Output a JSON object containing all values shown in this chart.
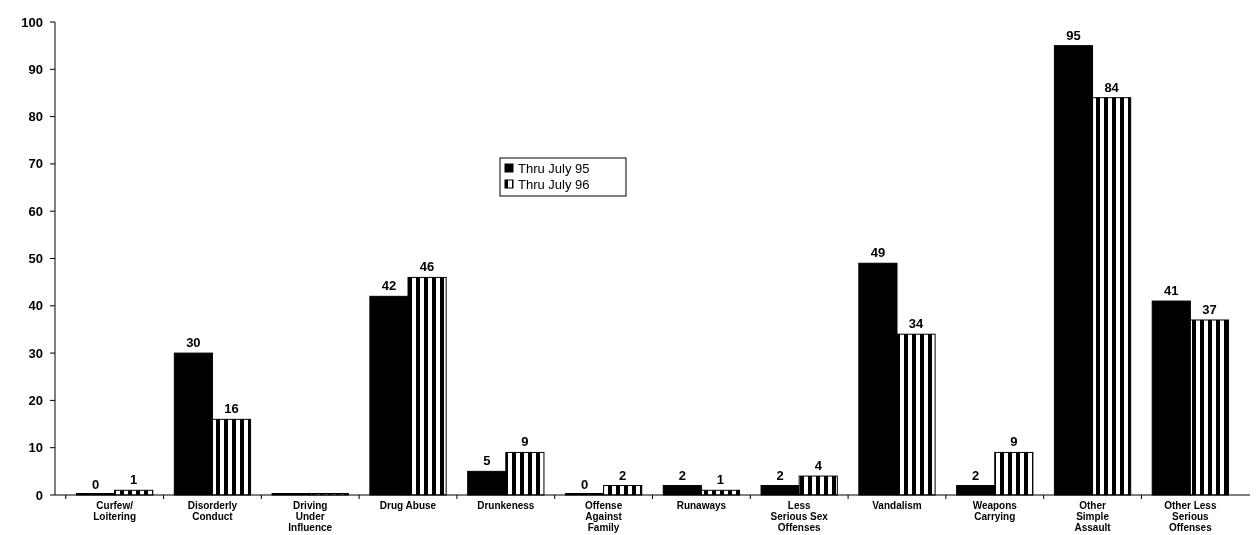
{
  "chart_data": {
    "type": "bar",
    "categories": [
      "Curfew/\nLoitering",
      "Disorderly\nConduct",
      "Driving\nUnder\nInfluence",
      "Drug Abuse",
      "Drunkeness",
      "Offense\nAgainst\nFamily",
      "Runaways",
      "Less\nSerious Sex\nOffenses",
      "Vandalism",
      "Weapons\nCarrying",
      "Other\nSimple\nAssault",
      "Other Less\nSerious\nOffenses"
    ],
    "series": [
      {
        "name": "Thru July 95",
        "color": "#000000",
        "values": [
          0,
          30,
          0,
          42,
          5,
          0,
          2,
          2,
          49,
          2,
          95,
          41
        ],
        "value_labels": [
          "0",
          "30",
          null,
          "42",
          "5",
          "0",
          "2",
          "2",
          "49",
          "2",
          "95",
          "41"
        ]
      },
      {
        "name": "Thru July 96",
        "color": "#000000",
        "values": [
          1,
          16,
          0,
          46,
          9,
          2,
          1,
          4,
          34,
          9,
          84,
          37
        ],
        "value_labels": [
          "1",
          "16",
          null,
          "46",
          "9",
          "2",
          "1",
          "4",
          "34",
          "9",
          "84",
          "37"
        ]
      }
    ],
    "ylim": [
      0,
      100
    ],
    "yticks": [
      0,
      10,
      20,
      30,
      40,
      50,
      60,
      70,
      80,
      90,
      100
    ],
    "grid": false,
    "legend": "top"
  }
}
